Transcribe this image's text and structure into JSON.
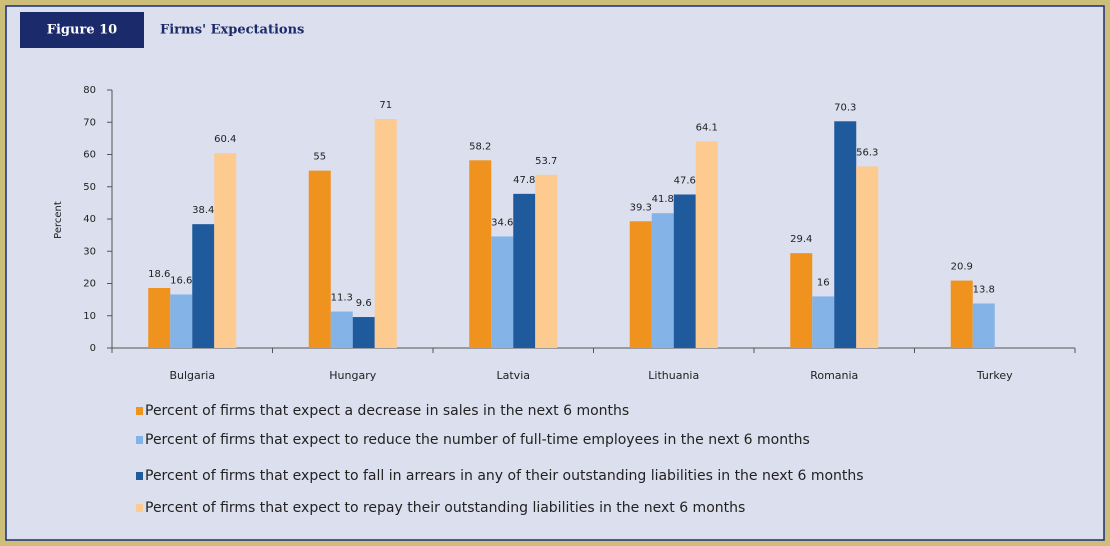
{
  "chart_data": {
    "type": "bar",
    "badge": "Figure 10",
    "title": "Firms' Expectations",
    "ylabel": "Percent",
    "categories": [
      "Bulgaria",
      "Hungary",
      "Latvia",
      "Lithuania",
      "Romania",
      "Turkey"
    ],
    "series": [
      {
        "name": "Percent of firms that expect a decrease in sales in the next 6 months",
        "color": "#f0921e",
        "values": [
          18.6,
          55,
          58.2,
          39.3,
          29.4,
          20.9
        ]
      },
      {
        "name": "Percent of firms that expect to reduce the number of full-time employees in the next 6 months",
        "color": "#84b3e8",
        "values": [
          16.6,
          11.3,
          34.6,
          41.8,
          16,
          13.8
        ]
      },
      {
        "name": "Percent of firms that expect to fall in arrears in any of their outstanding liabilities in the next 6 months",
        "color": "#1f5a9c",
        "values": [
          38.4,
          9.6,
          47.8,
          47.6,
          70.3,
          null
        ]
      },
      {
        "name": "Percent of firms that expect to repay their outstanding liabilities in the next 6 months",
        "color": "#fdca90",
        "values": [
          60.4,
          71,
          53.7,
          64.1,
          56.3,
          null
        ]
      }
    ],
    "ylim": [
      0,
      80
    ],
    "yticks": [
      0,
      10,
      20,
      30,
      40,
      50,
      60,
      70,
      80
    ],
    "grid": false
  }
}
